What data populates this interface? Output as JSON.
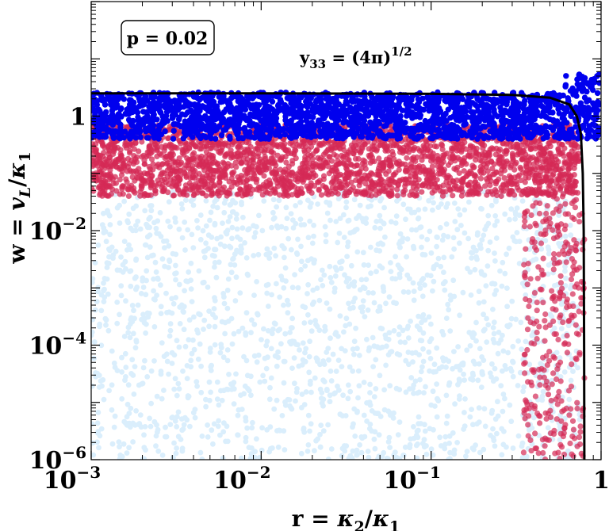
{
  "chart_data": {
    "type": "scatter",
    "x_scale": "log",
    "y_scale": "log",
    "xlim": [
      0.001,
      1
    ],
    "ylim": [
      1e-06,
      100
    ],
    "grid": false,
    "xlabel_parts": {
      "lhs": "r = ",
      "num": "κ",
      "num_sub": "2",
      "slash": "/",
      "den": "κ",
      "den_sub": "1"
    },
    "ylabel_parts": {
      "lhs": "w = ",
      "num": "v",
      "num_sub": "L",
      "slash": "/",
      "den": "κ",
      "den_sub": "1"
    },
    "x_ticks": [
      {
        "value": 0.001,
        "base": "10",
        "exp": "−3"
      },
      {
        "value": 0.01,
        "base": "10",
        "exp": "−2"
      },
      {
        "value": 0.1,
        "base": "10",
        "exp": "−1"
      },
      {
        "value": 1,
        "base": "1",
        "exp": ""
      }
    ],
    "y_ticks": [
      {
        "value": 1e-06,
        "base": "10",
        "exp": "−6"
      },
      {
        "value": 0.0001,
        "base": "10",
        "exp": "−4"
      },
      {
        "value": 0.01,
        "base": "10",
        "exp": "−2"
      },
      {
        "value": 1,
        "base": "1",
        "exp": ""
      }
    ],
    "legend_box": {
      "text": "p = 0.02",
      "placement": "top-left"
    },
    "curve_label": {
      "lhs": "y",
      "sub": "33",
      "rhs": " = (4π)",
      "sup": "1/2"
    },
    "series": [
      {
        "color": "#daeefc",
        "description_points": "bulk of points, w from 1e-6 to ~0.05, r from 1e-3 to ~0.7",
        "y_range": [
          1e-06,
          0.05
        ],
        "x_range": [
          0.001,
          0.75
        ],
        "count": 1800
      },
      {
        "color": "#d42a55",
        "y_range": [
          0.04,
          0.7
        ],
        "x_range": [
          0.001,
          0.75
        ],
        "count": 2600,
        "edge_band": {
          "x_range": [
            0.35,
            0.8
          ],
          "y_range": [
            1e-06,
            0.05
          ],
          "count": 320
        }
      },
      {
        "color": "#0000ee",
        "y_range": [
          0.4,
          2.6
        ],
        "x_range": [
          0.001,
          0.98
        ],
        "count": 2000
      }
    ],
    "boundary_curve": {
      "color": "#000000",
      "description": "perturbativity bound y33 = (4π)^(1/2)",
      "points": [
        [
          0.001,
          2.5
        ],
        [
          0.01,
          2.5
        ],
        [
          0.1,
          2.45
        ],
        [
          0.3,
          2.35
        ],
        [
          0.5,
          2.1
        ],
        [
          0.65,
          1.6
        ],
        [
          0.72,
          1.0
        ],
        [
          0.76,
          0.5
        ],
        [
          0.78,
          0.1
        ],
        [
          0.79,
          0.01
        ],
        [
          0.795,
          0.0001
        ],
        [
          0.797,
          1e-06
        ]
      ]
    }
  }
}
